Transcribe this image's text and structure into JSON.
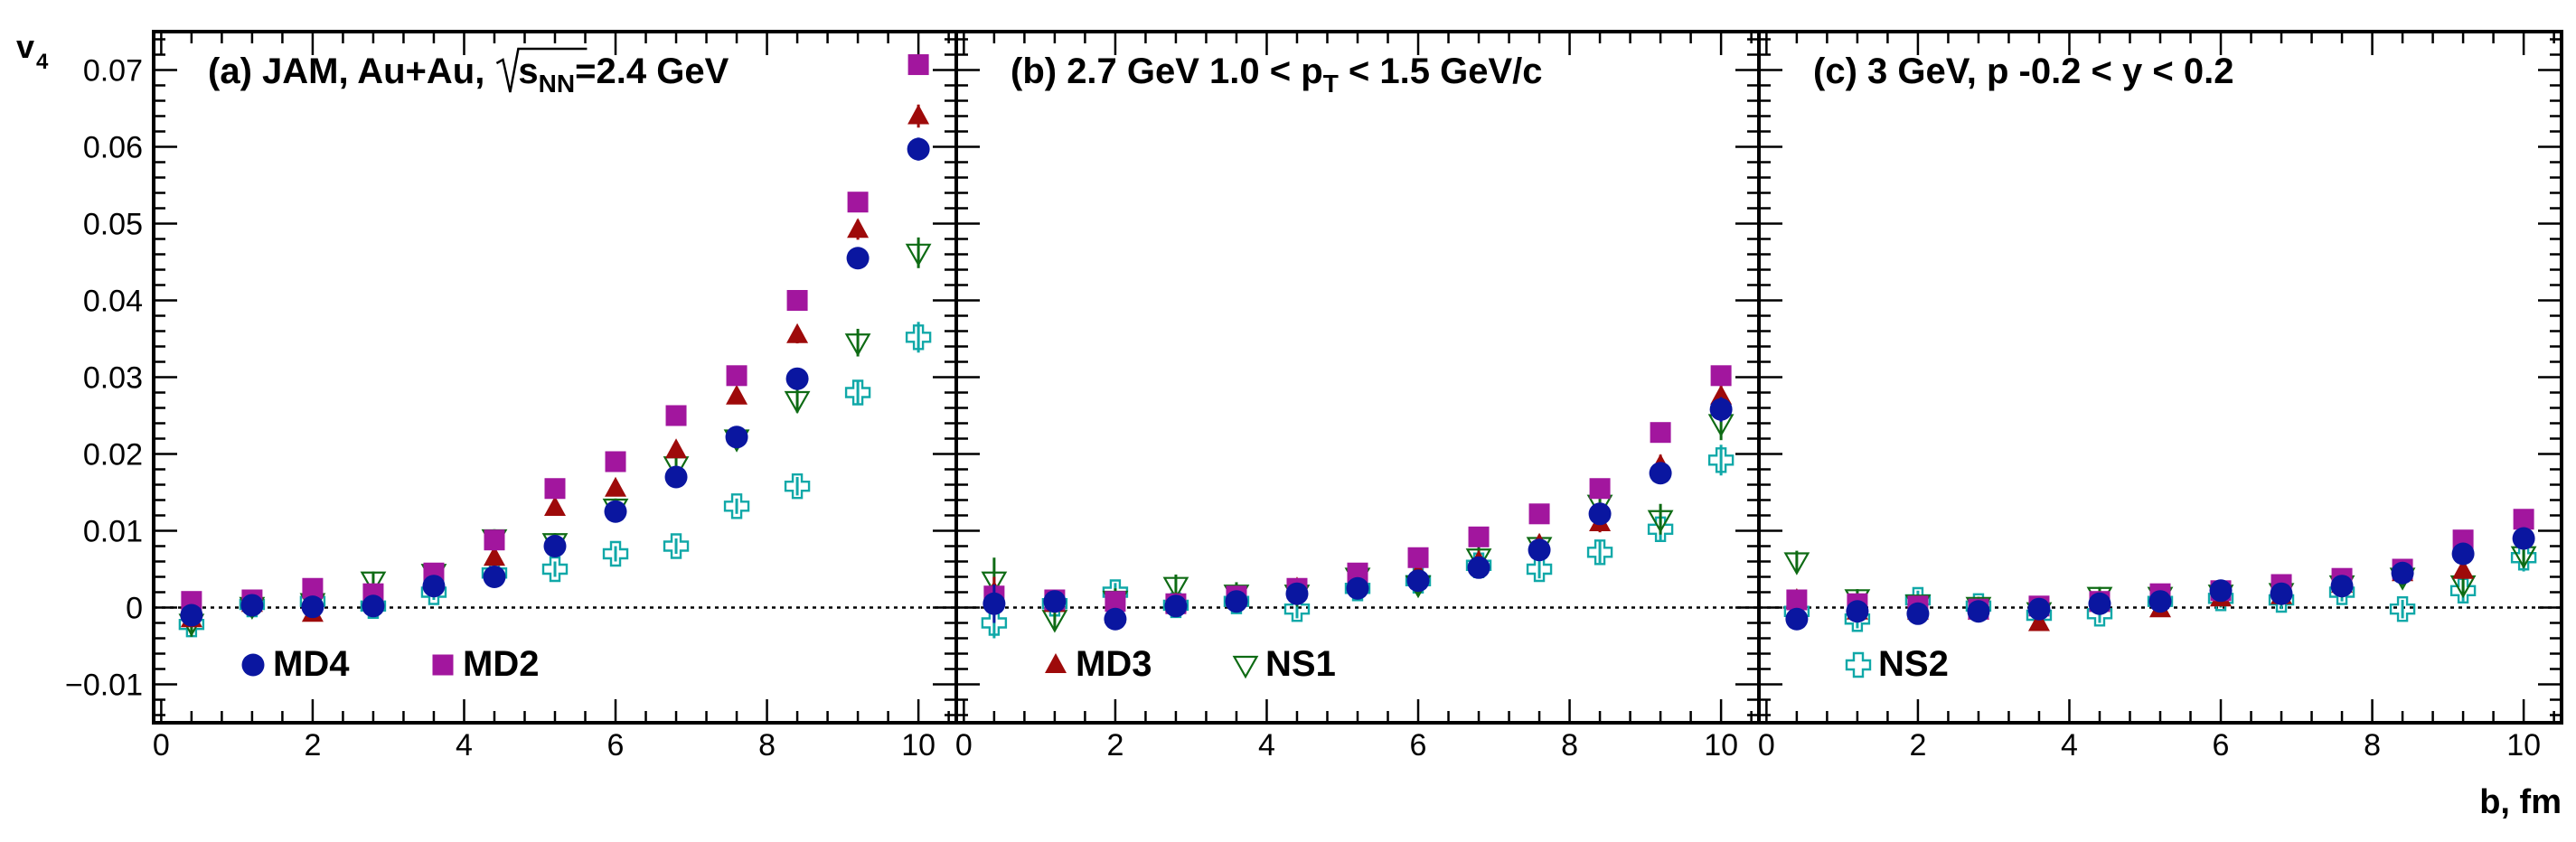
{
  "figure": {
    "ylabel_main": "v",
    "ylabel_sub": "4",
    "xlabel": "b, fm"
  },
  "chart_data": [
    {
      "type": "scatter",
      "panel": "a",
      "title_parts": {
        "prefix": "(a) JAM, Au+Au,",
        "sqrt": "s",
        "sub": "NN",
        "suffix": "=2.4 GeV"
      },
      "xlim": [
        -0.1,
        10.5
      ],
      "ylim": [
        -0.015,
        0.075
      ],
      "xticks": [
        0,
        2,
        4,
        6,
        8,
        10
      ],
      "yticks": [
        -0.01,
        0,
        0.01,
        0.02,
        0.03,
        0.04,
        0.05,
        0.06,
        0.07
      ],
      "ytick_labels": [
        "−0.01",
        "0",
        "0.01",
        "0.02",
        "0.03",
        "0.04",
        "0.05",
        "0.06",
        "0.07"
      ],
      "legend": [
        {
          "series": "MD4",
          "label": "MD4"
        },
        {
          "series": "MD2",
          "label": "MD2"
        }
      ],
      "x": [
        0.4,
        1.2,
        2.0,
        2.8,
        3.6,
        4.4,
        5.2,
        6.0,
        6.8,
        7.6,
        8.4,
        9.2,
        10.0
      ],
      "series": [
        {
          "name": "MD4",
          "values": [
            -0.001,
            0.0003,
            0.0001,
            0.0002,
            0.0028,
            0.004,
            0.008,
            0.0125,
            0.017,
            0.0222,
            0.0298,
            0.0455,
            0.0597
          ],
          "err": [
            0.001,
            0.0008,
            0.0008,
            0.0008,
            0.0008,
            0.0008,
            0.0008,
            0.0008,
            0.0008,
            0.0008,
            0.001,
            0.0012,
            0.0015
          ]
        },
        {
          "name": "MD2",
          "values": [
            0.0008,
            0.001,
            0.0025,
            0.0018,
            0.0045,
            0.0088,
            0.0155,
            0.019,
            0.025,
            0.0302,
            0.04,
            0.0528,
            0.0707
          ],
          "err": [
            0.0006,
            0.0006,
            0.0006,
            0.0006,
            0.0006,
            0.0006,
            0.0006,
            0.0006,
            0.0006,
            0.0006,
            0.0008,
            0.001,
            0.0012
          ]
        },
        {
          "name": "MD3",
          "values": [
            -0.0015,
            0.0005,
            -0.0008,
            0.001,
            0.004,
            0.0065,
            0.013,
            0.0155,
            0.0205,
            0.0275,
            0.0355,
            0.0492,
            0.064
          ],
          "err": [
            0.0009,
            0.0009,
            0.0009,
            0.0009,
            0.0009,
            0.0009,
            0.0009,
            0.0009,
            0.0009,
            0.0009,
            0.0011,
            0.0013,
            0.0015
          ]
        },
        {
          "name": "NS1",
          "values": [
            -0.002,
            0.0002,
            0.0007,
            0.0035,
            0.0045,
            0.009,
            0.0085,
            0.013,
            0.0185,
            0.022,
            0.027,
            0.0345,
            0.0462
          ],
          "err": [
            0.0018,
            0.0012,
            0.0012,
            0.0012,
            0.0012,
            0.0012,
            0.0012,
            0.0012,
            0.0012,
            0.0012,
            0.0016,
            0.0018,
            0.002
          ]
        },
        {
          "name": "NS2",
          "values": [
            -0.0022,
            0.0004,
            0.0008,
            0.0002,
            0.002,
            0.0045,
            0.005,
            0.007,
            0.008,
            0.0132,
            0.0158,
            0.028,
            0.0352
          ],
          "err": [
            0.0014,
            0.001,
            0.001,
            0.001,
            0.001,
            0.001,
            0.001,
            0.001,
            0.001,
            0.001,
            0.0012,
            0.0016,
            0.002
          ]
        }
      ]
    },
    {
      "type": "scatter",
      "panel": "b",
      "title_parts": {
        "prefix": "(b) 2.7 GeV   1.0 < p",
        "sub": "T",
        "suffix": " < 1.5 GeV/c"
      },
      "xlim": [
        -0.1,
        10.5
      ],
      "ylim": [
        -0.015,
        0.075
      ],
      "xticks": [
        0,
        2,
        4,
        6,
        8,
        10
      ],
      "legend": [
        {
          "series": "MD3",
          "label": "MD3"
        },
        {
          "series": "NS1",
          "label": "NS1"
        }
      ],
      "x": [
        0.4,
        1.2,
        2.0,
        2.8,
        3.6,
        4.4,
        5.2,
        6.0,
        6.8,
        7.6,
        8.4,
        9.2,
        10.0
      ],
      "series": [
        {
          "name": "MD4",
          "values": [
            0.0005,
            0.0008,
            -0.0015,
            0.0002,
            0.0008,
            0.0018,
            0.0025,
            0.0035,
            0.0052,
            0.0075,
            0.0122,
            0.0175,
            0.0258
          ],
          "err": [
            0.0025,
            0.001,
            0.001,
            0.001,
            0.001,
            0.001,
            0.001,
            0.001,
            0.001,
            0.001,
            0.0012,
            0.0014,
            0.0016
          ]
        },
        {
          "name": "MD2",
          "values": [
            0.0015,
            0.001,
            0.0008,
            0.0005,
            0.0015,
            0.0025,
            0.0045,
            0.0065,
            0.0092,
            0.0122,
            0.0155,
            0.0228,
            0.0302
          ],
          "err": [
            0.0006,
            0.0006,
            0.0006,
            0.0006,
            0.0006,
            0.0006,
            0.0006,
            0.0006,
            0.0006,
            0.0006,
            0.0008,
            0.001,
            0.0012
          ]
        },
        {
          "name": "MD3",
          "values": [
            0.002,
            0.0005,
            -0.001,
            0.0005,
            0.0012,
            0.0025,
            0.0038,
            0.0045,
            0.006,
            0.0082,
            0.011,
            0.0185,
            0.0275
          ],
          "err": [
            0.002,
            0.001,
            0.001,
            0.001,
            0.001,
            0.001,
            0.001,
            0.001,
            0.001,
            0.001,
            0.0012,
            0.0014,
            0.0016
          ]
        },
        {
          "name": "NS1",
          "values": [
            0.0035,
            -0.0015,
            0.001,
            0.0028,
            0.0018,
            0.0018,
            0.004,
            0.003,
            0.0065,
            0.008,
            0.0135,
            0.0115,
            0.024
          ],
          "err": [
            0.003,
            0.0015,
            0.0015,
            0.0015,
            0.0015,
            0.0015,
            0.0015,
            0.0015,
            0.0015,
            0.0015,
            0.0018,
            0.002,
            0.0022
          ]
        },
        {
          "name": "NS2",
          "values": [
            -0.002,
            0.0005,
            0.002,
            0.0003,
            0.0008,
            -0.0002,
            0.0025,
            0.0035,
            0.0055,
            0.005,
            0.0072,
            0.0102,
            0.0192
          ],
          "err": [
            0.002,
            0.0012,
            0.0012,
            0.0012,
            0.0012,
            0.0012,
            0.0012,
            0.0012,
            0.0012,
            0.0012,
            0.0014,
            0.0016,
            0.002
          ]
        }
      ]
    },
    {
      "type": "scatter",
      "panel": "c",
      "title_parts": {
        "prefix": "(c) 3 GeV, p",
        "suffix": "    -0.2 < y < 0.2"
      },
      "xlim": [
        -0.1,
        10.5
      ],
      "ylim": [
        -0.015,
        0.075
      ],
      "xticks": [
        0,
        2,
        4,
        6,
        8,
        10
      ],
      "legend": [
        {
          "series": "NS2",
          "label": "NS2"
        }
      ],
      "x": [
        0.4,
        1.2,
        2.0,
        2.8,
        3.6,
        4.4,
        5.2,
        6.0,
        6.8,
        7.6,
        8.4,
        9.2,
        10.0
      ],
      "series": [
        {
          "name": "MD4",
          "values": [
            -0.0015,
            -0.0005,
            -0.0008,
            -0.0005,
            -0.0002,
            0.0005,
            0.0008,
            0.0022,
            0.0018,
            0.0028,
            0.0045,
            0.007,
            0.009
          ],
          "err": [
            0.0008,
            0.0008,
            0.0008,
            0.0008,
            0.0008,
            0.0008,
            0.0008,
            0.0008,
            0.0008,
            0.0008,
            0.0008,
            0.001,
            0.0012
          ]
        },
        {
          "name": "MD2",
          "values": [
            0.001,
            0.0005,
            0.0002,
            -0.0002,
            0.0002,
            0.0008,
            0.0018,
            0.0022,
            0.003,
            0.0038,
            0.005,
            0.0088,
            0.0115
          ],
          "err": [
            0.0006,
            0.0006,
            0.0006,
            0.0006,
            0.0006,
            0.0006,
            0.0006,
            0.0006,
            0.0006,
            0.0006,
            0.0006,
            0.0008,
            0.001
          ]
        },
        {
          "name": "MD3",
          "values": [
            0.001,
            -0.0005,
            -0.0005,
            -0.0005,
            -0.002,
            0.0005,
            -0.0002,
            0.0012,
            0.0015,
            0.003,
            0.0045,
            0.0048,
            0.01
          ],
          "err": [
            0.0008,
            0.0008,
            0.0008,
            0.0008,
            0.0008,
            0.0008,
            0.0008,
            0.0008,
            0.0008,
            0.0008,
            0.0008,
            0.001,
            0.0012
          ]
        },
        {
          "name": "NS1",
          "values": [
            0.006,
            0.0012,
            0.0005,
            0.0002,
            -0.0005,
            0.0015,
            0.0015,
            0.0018,
            0.002,
            0.003,
            0.004,
            0.003,
            0.0068
          ],
          "err": [
            0.0014,
            0.0012,
            0.0012,
            0.0012,
            0.0012,
            0.0012,
            0.0012,
            0.0012,
            0.0012,
            0.0012,
            0.0012,
            0.0014,
            0.0016
          ]
        },
        {
          "name": "NS2",
          "values": [
            -0.0005,
            -0.0015,
            0.001,
            0.0002,
            -0.001,
            -0.0008,
            0.0008,
            0.0012,
            0.001,
            0.002,
            -0.0002,
            0.0022,
            0.0065
          ],
          "err": [
            0.0014,
            0.0012,
            0.0012,
            0.0012,
            0.0012,
            0.0012,
            0.0012,
            0.0012,
            0.0012,
            0.0012,
            0.0012,
            0.0014,
            0.0018
          ]
        }
      ]
    }
  ],
  "colors": {
    "MD4": "#0a16a0",
    "MD2": "#a2169e",
    "MD3": "#9e0a0a",
    "NS1": "#0e6b14",
    "NS2": "#10a8a8",
    "axis": "#000000"
  },
  "icons": {
    "MD4": "filled-circle-marker",
    "MD2": "filled-square-marker",
    "MD3": "filled-triangle-marker",
    "NS1": "open-triangle-down-marker",
    "NS2": "open-cross-marker"
  }
}
